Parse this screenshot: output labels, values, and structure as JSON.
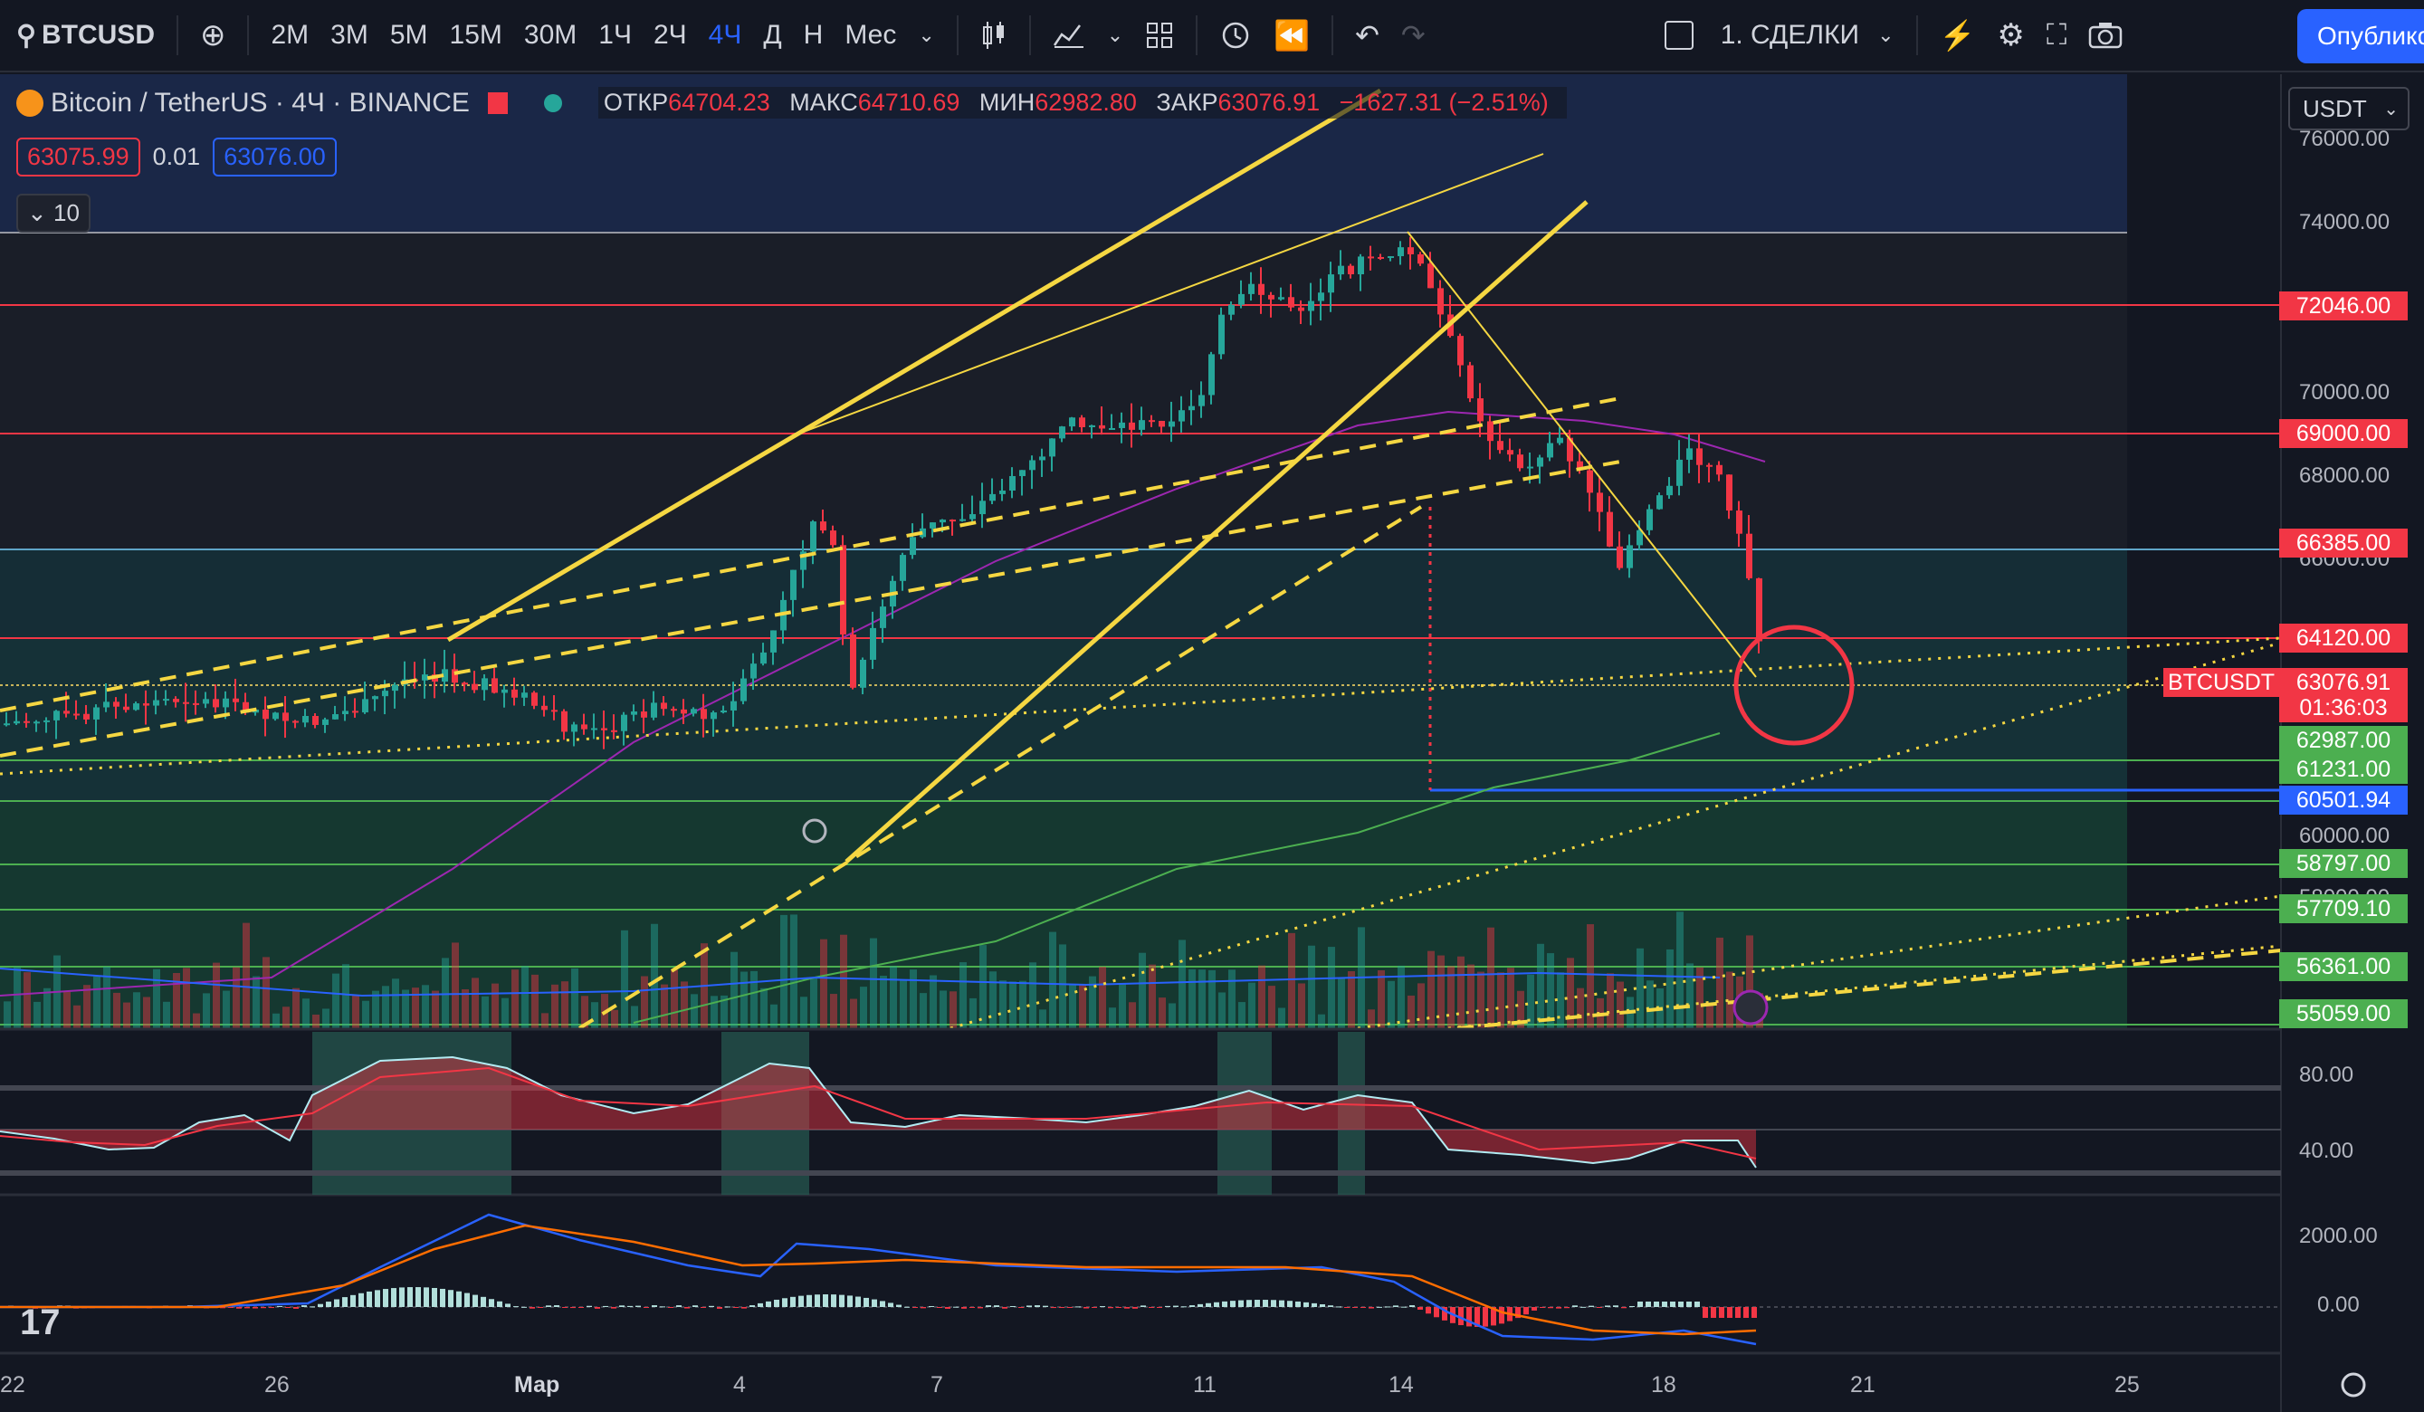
{
  "toolbar": {
    "symbol": "BTCUSD",
    "intervals": [
      "2M",
      "3M",
      "5M",
      "15M",
      "30M",
      "1Ч",
      "2Ч",
      "4Ч",
      "Д",
      "Н",
      "Мес"
    ],
    "active_interval": "4Ч",
    "layout_label": "1. СДЕЛКИ",
    "publish_label": "Опублико",
    "icons": [
      "search-icon",
      "plus-circle-icon",
      "candles-icon",
      "indicators-icon",
      "grid-icon",
      "alert-icon",
      "replay-icon",
      "undo-icon",
      "redo-icon",
      "fullscreen-icon",
      "camera-icon",
      "settings-icon"
    ]
  },
  "legend": {
    "title": "Bitcoin / TetherUS · 4Ч · BINANCE",
    "open_label": "ОТКР",
    "open": "64704.23",
    "high_label": "МАКС",
    "high": "64710.69",
    "low_label": "МИН",
    "low": "62982.80",
    "close_label": "ЗАКР",
    "close": "63076.91",
    "change": "−1627.31 (−2.51%)",
    "sell": "63075.99",
    "spread": "0.01",
    "buy": "63076.00",
    "indicator_count": "10"
  },
  "currency": "USDT",
  "price_axis": [
    "76000.00",
    "74000.00",
    "70000.00",
    "68000.00",
    "66000.00",
    "60000.00",
    "58000.00",
    "80.00",
    "40.00",
    "2000.00",
    "0.00"
  ],
  "price_tags": [
    {
      "label": "72046.00",
      "color": "#f23645"
    },
    {
      "label": "69000.00",
      "color": "#f23645"
    },
    {
      "label": "66385.00",
      "color": "#f23645"
    },
    {
      "label": "64120.00",
      "color": "#f23645"
    },
    {
      "label": "63076.91",
      "color": "#f23645"
    },
    {
      "label": "01:36:03",
      "color": "#f23645"
    },
    {
      "label": "62987.00",
      "color": "#4caf50"
    },
    {
      "label": "61231.00",
      "color": "#4caf50"
    },
    {
      "label": "60501.94",
      "color": "#2962ff"
    },
    {
      "label": "58797.00",
      "color": "#4caf50"
    },
    {
      "label": "57709.10",
      "color": "#4caf50"
    },
    {
      "label": "56361.00",
      "color": "#4caf50"
    },
    {
      "label": "55059.00",
      "color": "#4caf50"
    }
  ],
  "symbol_tag": "BTCUSDT",
  "dates": [
    "22",
    "26",
    "Мар",
    "4",
    "7",
    "11",
    "14",
    "18",
    "21",
    "25"
  ]
}
